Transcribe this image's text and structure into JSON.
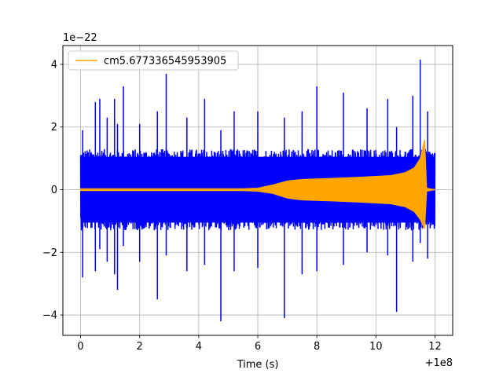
{
  "chart_data": {
    "type": "line",
    "title": "",
    "xlabel": "Time (s)",
    "ylabel": "",
    "x_offset_label": "+1e8",
    "y_scale_label": "1e−22",
    "xlim": [
      -0.6,
      12.6
    ],
    "ylim": [
      -4.65,
      4.6
    ],
    "x_ticks": [
      0,
      2,
      4,
      6,
      8,
      10,
      12
    ],
    "x_tick_labels": [
      "0",
      "2",
      "4",
      "6",
      "8",
      "10",
      "12"
    ],
    "y_ticks": [
      -4,
      -2,
      0,
      2,
      4
    ],
    "y_tick_labels": [
      "−4",
      "−2",
      "0",
      "2",
      "4"
    ],
    "grid": true,
    "legend_position": "top-left",
    "series": [
      {
        "color": "#0000ff",
        "x_range": [
          0,
          12
        ],
        "envelope": {
          "typical_abs": 1.3,
          "peaks": [
            {
              "x": 0.07,
              "min": -2.8,
              "max": 1.9
            },
            {
              "x": 0.5,
              "min": -2.6,
              "max": 2.8
            },
            {
              "x": 0.65,
              "min": -1.9,
              "max": 2.9
            },
            {
              "x": 0.9,
              "min": -2.3,
              "max": 2.3
            },
            {
              "x": 1.15,
              "min": -2.7,
              "max": 2.9
            },
            {
              "x": 1.25,
              "min": -3.2,
              "max": 2.1
            },
            {
              "x": 1.45,
              "min": -1.8,
              "max": 3.3
            },
            {
              "x": 2.0,
              "min": -2.3,
              "max": 2.1
            },
            {
              "x": 2.6,
              "min": -3.5,
              "max": 2.5
            },
            {
              "x": 2.9,
              "min": -2.1,
              "max": 3.7
            },
            {
              "x": 3.6,
              "min": -2.6,
              "max": 2.3
            },
            {
              "x": 4.2,
              "min": -2.4,
              "max": 2.9
            },
            {
              "x": 4.75,
              "min": -4.2,
              "max": 1.9
            },
            {
              "x": 5.2,
              "min": -2.6,
              "max": 2.5
            },
            {
              "x": 6.0,
              "min": -2.5,
              "max": 2.5
            },
            {
              "x": 6.9,
              "min": -4.1,
              "max": 2.3
            },
            {
              "x": 7.5,
              "min": -2.7,
              "max": 2.5
            },
            {
              "x": 8.0,
              "min": -2.6,
              "max": 3.3
            },
            {
              "x": 8.9,
              "min": -2.4,
              "max": 3.1
            },
            {
              "x": 9.7,
              "min": -2.0,
              "max": 2.6
            },
            {
              "x": 10.4,
              "min": -2.1,
              "max": 2.9
            },
            {
              "x": 10.7,
              "min": -3.9,
              "max": 2.0
            },
            {
              "x": 11.25,
              "min": -2.3,
              "max": 3.0
            },
            {
              "x": 11.5,
              "min": -1.7,
              "max": 4.15
            },
            {
              "x": 11.75,
              "min": -2.2,
              "max": 2.5
            }
          ]
        }
      },
      {
        "name": "cm5.677336545953905",
        "color": "#ffa500",
        "x_range": [
          0,
          12
        ],
        "envelope": {
          "points": [
            {
              "x": 0,
              "max": 0.03,
              "min": -0.03
            },
            {
              "x": 5.5,
              "max": 0.03,
              "min": -0.03
            },
            {
              "x": 6.0,
              "max": 0.05,
              "min": -0.05
            },
            {
              "x": 6.5,
              "max": 0.15,
              "min": -0.12
            },
            {
              "x": 7.0,
              "max": 0.28,
              "min": -0.27
            },
            {
              "x": 7.5,
              "max": 0.33,
              "min": -0.33
            },
            {
              "x": 8.5,
              "max": 0.36,
              "min": -0.36
            },
            {
              "x": 9.5,
              "max": 0.4,
              "min": -0.4
            },
            {
              "x": 10.5,
              "max": 0.45,
              "min": -0.45
            },
            {
              "x": 11.0,
              "max": 0.55,
              "min": -0.55
            },
            {
              "x": 11.3,
              "max": 0.7,
              "min": -0.7
            },
            {
              "x": 11.5,
              "max": 1.0,
              "min": -0.95
            },
            {
              "x": 11.65,
              "max": 1.6,
              "min": -1.25
            },
            {
              "x": 11.72,
              "max": 0.05,
              "min": -0.05
            },
            {
              "x": 12.0,
              "max": 0.0,
              "min": 0.0
            }
          ]
        }
      }
    ]
  }
}
